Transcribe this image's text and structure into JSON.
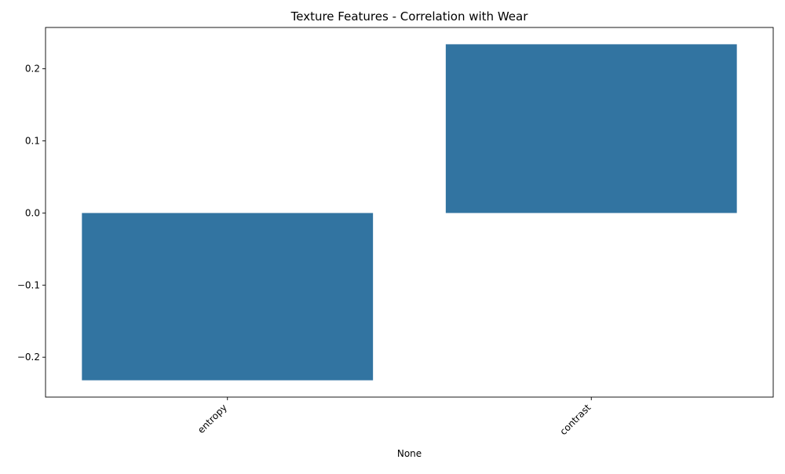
{
  "chart_data": {
    "type": "bar",
    "title": "Texture Features - Correlation with Wear",
    "xlabel": "None",
    "ylabel": "",
    "categories": [
      "entropy",
      "contrast"
    ],
    "values": [
      -0.232,
      0.234
    ],
    "ylim": [
      -0.2553,
      0.2573
    ],
    "yticks": [
      -0.2,
      -0.1,
      0.0,
      0.1,
      0.2
    ],
    "ytick_labels": [
      "−0.2",
      "−0.1",
      "0.0",
      "0.1",
      "0.2"
    ],
    "bar_color": "#3274a1",
    "grid": false,
    "legend": "none",
    "xtick_rotation_deg": 45
  }
}
